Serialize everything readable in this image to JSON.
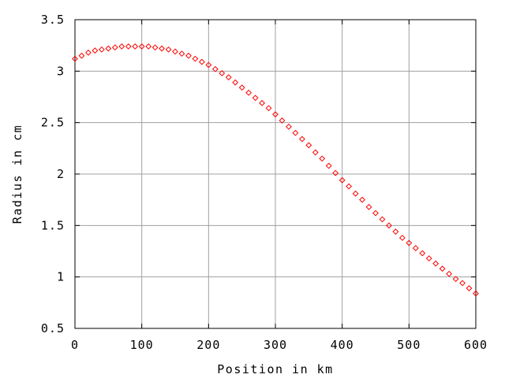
{
  "chart_data": {
    "type": "scatter",
    "title": "",
    "xlabel": "Position in km",
    "ylabel": "Radius in cm",
    "xlim": [
      0,
      600
    ],
    "ylim": [
      0.5,
      3.5
    ],
    "xticks": [
      0,
      100,
      200,
      300,
      400,
      500,
      600
    ],
    "yticks": [
      0.5,
      1,
      1.5,
      2,
      2.5,
      3,
      3.5
    ],
    "xtick_labels": [
      "0",
      "100",
      "200",
      "300",
      "400",
      "500",
      "600"
    ],
    "ytick_labels": [
      "0.5",
      "1",
      "1.5",
      "2",
      "2.5",
      "3",
      "3.5"
    ],
    "grid": true,
    "marker": "diamond",
    "color": "#ff0000",
    "series": [
      {
        "points": [
          [
            0,
            3.12
          ],
          [
            10,
            3.15
          ],
          [
            20,
            3.18
          ],
          [
            30,
            3.2
          ],
          [
            40,
            3.21
          ],
          [
            50,
            3.22
          ],
          [
            60,
            3.23
          ],
          [
            70,
            3.24
          ],
          [
            80,
            3.24
          ],
          [
            90,
            3.24
          ],
          [
            100,
            3.24
          ],
          [
            110,
            3.24
          ],
          [
            120,
            3.23
          ],
          [
            130,
            3.22
          ],
          [
            140,
            3.21
          ],
          [
            150,
            3.19
          ],
          [
            160,
            3.17
          ],
          [
            170,
            3.15
          ],
          [
            180,
            3.12
          ],
          [
            190,
            3.09
          ],
          [
            200,
            3.06
          ],
          [
            210,
            3.02
          ],
          [
            220,
            2.98
          ],
          [
            230,
            2.94
          ],
          [
            240,
            2.89
          ],
          [
            250,
            2.84
          ],
          [
            260,
            2.79
          ],
          [
            270,
            2.74
          ],
          [
            280,
            2.69
          ],
          [
            290,
            2.64
          ],
          [
            300,
            2.58
          ],
          [
            310,
            2.52
          ],
          [
            320,
            2.46
          ],
          [
            330,
            2.4
          ],
          [
            340,
            2.34
          ],
          [
            350,
            2.28
          ],
          [
            360,
            2.21
          ],
          [
            370,
            2.15
          ],
          [
            380,
            2.08
          ],
          [
            390,
            2.01
          ],
          [
            400,
            1.94
          ],
          [
            410,
            1.88
          ],
          [
            420,
            1.81
          ],
          [
            430,
            1.75
          ],
          [
            440,
            1.68
          ],
          [
            450,
            1.62
          ],
          [
            460,
            1.56
          ],
          [
            470,
            1.5
          ],
          [
            480,
            1.44
          ],
          [
            490,
            1.38
          ],
          [
            500,
            1.33
          ],
          [
            510,
            1.28
          ],
          [
            520,
            1.23
          ],
          [
            530,
            1.18
          ],
          [
            540,
            1.13
          ],
          [
            550,
            1.08
          ],
          [
            560,
            1.03
          ],
          [
            570,
            0.98
          ],
          [
            580,
            0.94
          ],
          [
            590,
            0.89
          ],
          [
            600,
            0.84
          ]
        ]
      }
    ]
  }
}
